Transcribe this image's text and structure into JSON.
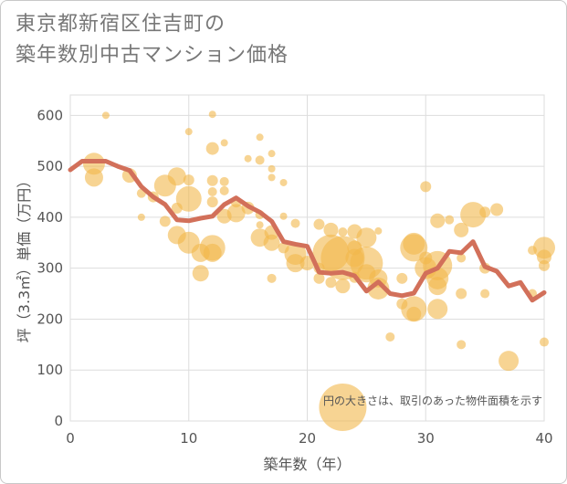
{
  "title_line1": "東京都新宿区住吉町の",
  "title_line2": "築年数別中古マンション価格",
  "colors": {
    "bubble": "#F2B84B",
    "line": "#D2705A",
    "grid": "#DDDDDD",
    "plot_bg": "#ffffff"
  },
  "chart_data": {
    "type": "scatter",
    "title": "東京都新宿区住吉町の築年数別中古マンション価格",
    "xlabel": "築年数（年）",
    "ylabel": "坪（3.3㎡）単価（万円）",
    "xlim": [
      0,
      40
    ],
    "ylim": [
      0,
      640
    ],
    "xticks": [
      "0",
      "10",
      "20",
      "30",
      "40"
    ],
    "yticks": [
      "0",
      "100",
      "200",
      "300",
      "400",
      "500",
      "600"
    ],
    "grid": true,
    "annotation": "円の大きさは、取引のあった物件面積を示す",
    "bubbles": [
      [
        3,
        600,
        4
      ],
      [
        12,
        602,
        4
      ],
      [
        10,
        568,
        4
      ],
      [
        16,
        557,
        4
      ],
      [
        12,
        535,
        7
      ],
      [
        13,
        546,
        4
      ],
      [
        16,
        512,
        5
      ],
      [
        17,
        525,
        4
      ],
      [
        15,
        515,
        4
      ],
      [
        2,
        505,
        12
      ],
      [
        2,
        478,
        10
      ],
      [
        5,
        482,
        8
      ],
      [
        9,
        480,
        10
      ],
      [
        8,
        462,
        12
      ],
      [
        10,
        473,
        6
      ],
      [
        12,
        472,
        6
      ],
      [
        13,
        470,
        5
      ],
      [
        17,
        478,
        4
      ],
      [
        18,
        468,
        4
      ],
      [
        17,
        495,
        4
      ],
      [
        6,
        447,
        5
      ],
      [
        7,
        440,
        6
      ],
      [
        10,
        436,
        14
      ],
      [
        12,
        450,
        5
      ],
      [
        13,
        452,
        5
      ],
      [
        14,
        430,
        6
      ],
      [
        12,
        430,
        6
      ],
      [
        15,
        418,
        7
      ],
      [
        13,
        402,
        8
      ],
      [
        14,
        408,
        10
      ],
      [
        16,
        405,
        5
      ],
      [
        9,
        418,
        6
      ],
      [
        8,
        392,
        6
      ],
      [
        6,
        400,
        4
      ],
      [
        16,
        385,
        4
      ],
      [
        17,
        370,
        8
      ],
      [
        18,
        402,
        4
      ],
      [
        19,
        388,
        5
      ],
      [
        21,
        386,
        6
      ],
      [
        22,
        375,
        8
      ],
      [
        23,
        371,
        5
      ],
      [
        24,
        372,
        8
      ],
      [
        25,
        360,
        11
      ],
      [
        26,
        373,
        4
      ],
      [
        9,
        365,
        10
      ],
      [
        10,
        350,
        12
      ],
      [
        11,
        330,
        10
      ],
      [
        12,
        340,
        14
      ],
      [
        12,
        330,
        10
      ],
      [
        16,
        360,
        10
      ],
      [
        17,
        350,
        9
      ],
      [
        18,
        340,
        6
      ],
      [
        19,
        328,
        12
      ],
      [
        19,
        310,
        10
      ],
      [
        20,
        310,
        8
      ],
      [
        21,
        300,
        6
      ],
      [
        22,
        330,
        20
      ],
      [
        23,
        320,
        24
      ],
      [
        24,
        320,
        10
      ],
      [
        24,
        340,
        8
      ],
      [
        25,
        310,
        18
      ],
      [
        25,
        290,
        10
      ],
      [
        24,
        282,
        6
      ],
      [
        26,
        280,
        10
      ],
      [
        26,
        260,
        12
      ],
      [
        21,
        280,
        6
      ],
      [
        22,
        272,
        6
      ],
      [
        23,
        265,
        8
      ],
      [
        11,
        290,
        9
      ],
      [
        17,
        280,
        5
      ],
      [
        27,
        165,
        5
      ],
      [
        28,
        280,
        6
      ],
      [
        29,
        348,
        12
      ],
      [
        29,
        340,
        15
      ],
      [
        30,
        320,
        7
      ],
      [
        30,
        300,
        12
      ],
      [
        31,
        305,
        16
      ],
      [
        31,
        280,
        12
      ],
      [
        31,
        265,
        10
      ],
      [
        31,
        220,
        11
      ],
      [
        29,
        220,
        14
      ],
      [
        29,
        210,
        8
      ],
      [
        28,
        230,
        6
      ],
      [
        30,
        460,
        6
      ],
      [
        31,
        393,
        8
      ],
      [
        32,
        395,
        5
      ],
      [
        33,
        375,
        8
      ],
      [
        34,
        405,
        14
      ],
      [
        35,
        410,
        6
      ],
      [
        36,
        415,
        7
      ],
      [
        33,
        320,
        5
      ],
      [
        35,
        300,
        6
      ],
      [
        35,
        250,
        5
      ],
      [
        33,
        250,
        6
      ],
      [
        33,
        150,
        5
      ],
      [
        37,
        118,
        11
      ],
      [
        39,
        335,
        5
      ],
      [
        40,
        340,
        12
      ],
      [
        40,
        322,
        8
      ],
      [
        40,
        305,
        6
      ],
      [
        40,
        155,
        5
      ],
      [
        39,
        250,
        5
      ],
      [
        23,
        27,
        26
      ]
    ],
    "series": [
      {
        "x": [
          0,
          1,
          2,
          3,
          4,
          5,
          6,
          7,
          8,
          9,
          10,
          11,
          12,
          13,
          14,
          15,
          16,
          17,
          18,
          19,
          20,
          21,
          22,
          23,
          24,
          25,
          26,
          27,
          28,
          29,
          30,
          31,
          32,
          33,
          34,
          35,
          36,
          37,
          38,
          39,
          40
        ],
        "values": [
          493,
          510,
          510,
          510,
          500,
          492,
          460,
          440,
          425,
          395,
          393,
          398,
          402,
          425,
          438,
          422,
          410,
          392,
          352,
          347,
          343,
          292,
          290,
          292,
          285,
          255,
          273,
          250,
          246,
          251,
          290,
          300,
          333,
          330,
          352,
          303,
          294,
          265,
          272,
          237,
          252
        ]
      }
    ]
  }
}
